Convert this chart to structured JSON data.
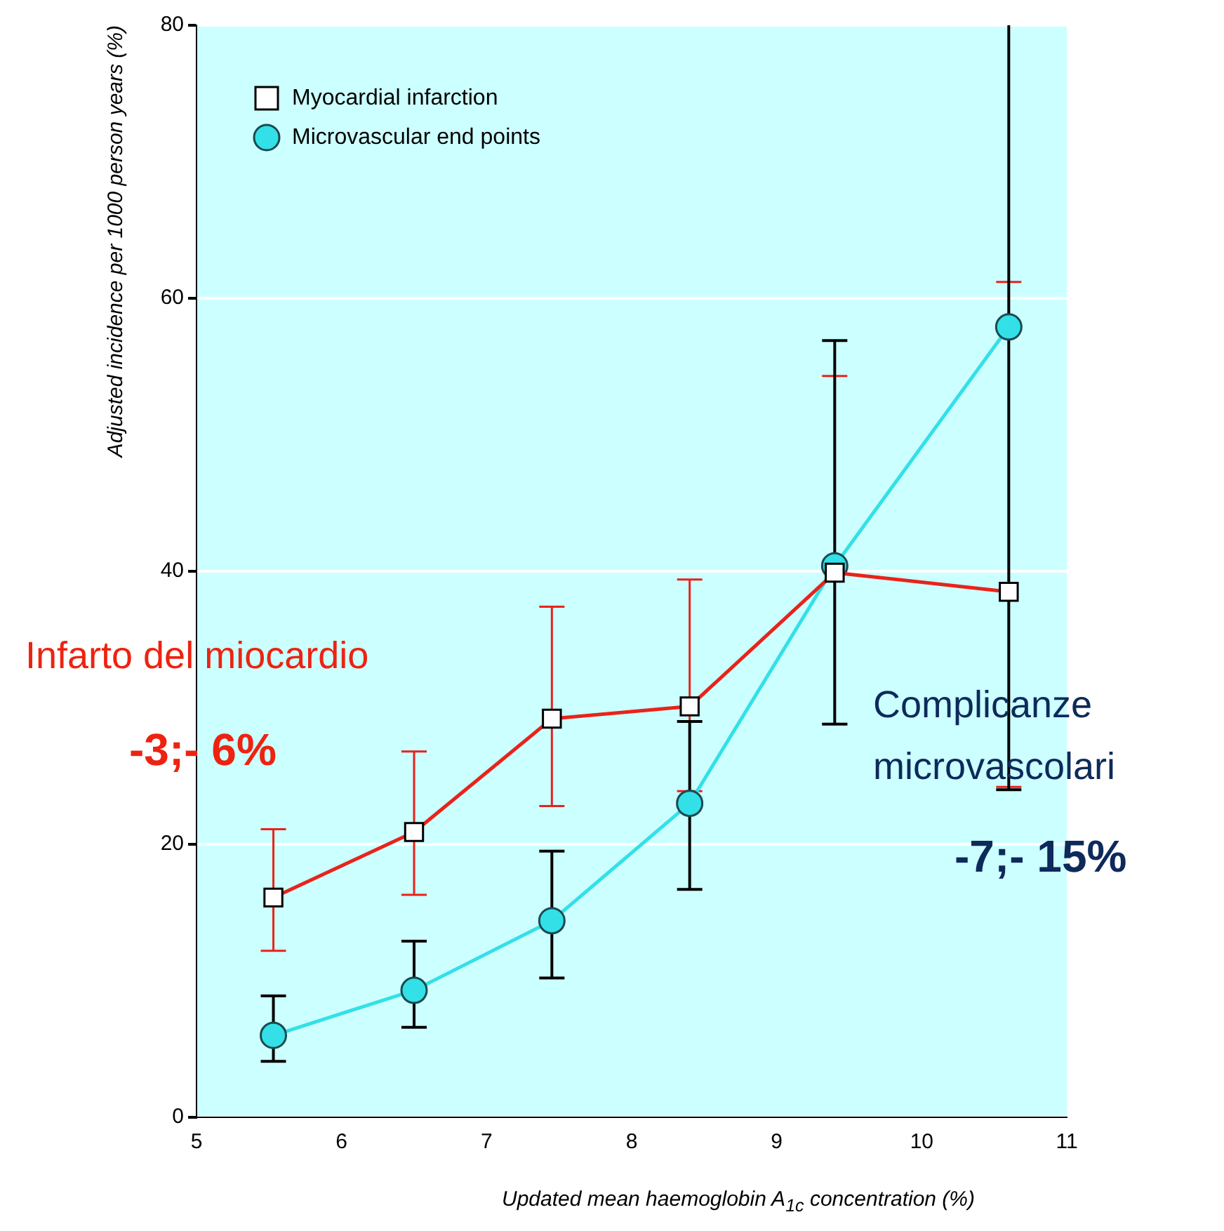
{
  "chart_data": {
    "type": "line",
    "xlabel": "Updated mean haemoglobin A$_{1c}$ concentration (%)",
    "ylabel": "Adjusted incidence per 1000 person years (%)",
    "xlim": [
      5,
      11
    ],
    "xticks": [
      5,
      6,
      7,
      8,
      9,
      10,
      11
    ],
    "ylim": [
      0,
      80
    ],
    "yticks": [
      0,
      20,
      40,
      60,
      80
    ],
    "grid": "y",
    "legend": "top left",
    "annotations": [
      "Infarto del miocardio",
      "-3;- 6%",
      "Complicanze microvascolari",
      "-7;- 15%"
    ],
    "series": [
      {
        "name": "Myocardial infarction",
        "color": "#e8231b",
        "marker": "square",
        "x": [
          5.53,
          6.5,
          7.45,
          8.4,
          9.4,
          10.6
        ],
        "values": [
          16.1,
          20.9,
          29.2,
          30.1,
          39.9,
          38.5
        ],
        "errors": [
          [
            12.2,
            21.1
          ],
          [
            16.3,
            26.8
          ],
          [
            22.8,
            37.4
          ],
          [
            23.9,
            39.4
          ],
          [
            28.8,
            54.3
          ],
          [
            24.2,
            61.2
          ]
        ]
      },
      {
        "name": "Microvascular end points",
        "color": "#33e0e8",
        "marker": "circle",
        "x": [
          5.53,
          6.5,
          7.45,
          8.4,
          9.4,
          10.6
        ],
        "values": [
          6.0,
          9.3,
          14.4,
          23.0,
          40.4,
          57.9
        ],
        "errors": [
          [
            4.1,
            8.9
          ],
          [
            6.6,
            12.9
          ],
          [
            10.2,
            19.5
          ],
          [
            16.7,
            29.0
          ],
          [
            28.8,
            56.9
          ],
          [
            24.0,
            80
          ]
        ]
      }
    ]
  }
}
